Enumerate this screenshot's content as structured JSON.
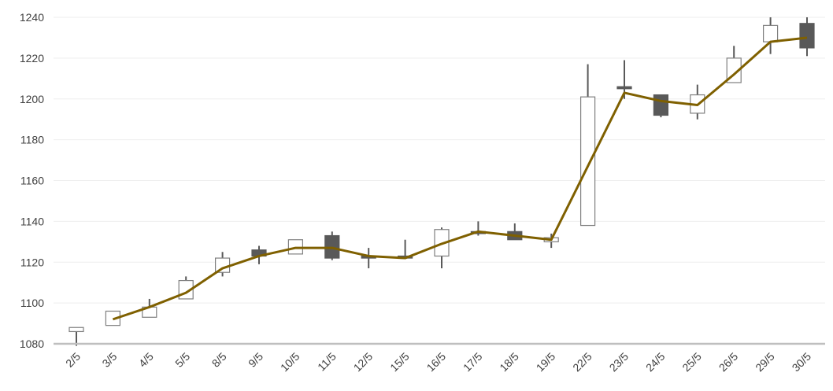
{
  "chart_data": {
    "type": "candlestick",
    "categories": [
      "2/5",
      "3/5",
      "4/5",
      "5/5",
      "8/5",
      "9/5",
      "10/5",
      "11/5",
      "12/5",
      "15/5",
      "16/5",
      "17/5",
      "18/5",
      "19/5",
      "22/5",
      "23/5",
      "24/5",
      "25/5",
      "26/5",
      "29/5",
      "30/5"
    ],
    "candles": [
      {
        "open": 1086,
        "close": 1088,
        "high": 1088,
        "low": 1079
      },
      {
        "open": 1089,
        "close": 1096,
        "high": 1096,
        "low": 1089
      },
      {
        "open": 1093,
        "close": 1098,
        "high": 1102,
        "low": 1093
      },
      {
        "open": 1102,
        "close": 1111,
        "high": 1113,
        "low": 1102
      },
      {
        "open": 1115,
        "close": 1122,
        "high": 1125,
        "low": 1113
      },
      {
        "open": 1126,
        "close": 1123,
        "high": 1128,
        "low": 1119
      },
      {
        "open": 1124,
        "close": 1131,
        "high": 1131,
        "low": 1124
      },
      {
        "open": 1133,
        "close": 1122,
        "high": 1135,
        "low": 1121
      },
      {
        "open": 1123,
        "close": 1122,
        "high": 1127,
        "low": 1117
      },
      {
        "open": 1123,
        "close": 1122,
        "high": 1131,
        "low": 1122
      },
      {
        "open": 1123,
        "close": 1136,
        "high": 1137,
        "low": 1117
      },
      {
        "open": 1135,
        "close": 1134,
        "high": 1140,
        "low": 1133
      },
      {
        "open": 1135,
        "close": 1131,
        "high": 1139,
        "low": 1131
      },
      {
        "open": 1130,
        "close": 1132,
        "high": 1134,
        "low": 1127
      },
      {
        "open": 1138,
        "close": 1201,
        "high": 1217,
        "low": 1138
      },
      {
        "open": 1206,
        "close": 1205,
        "high": 1219,
        "low": 1200
      },
      {
        "open": 1202,
        "close": 1192,
        "high": 1202,
        "low": 1191
      },
      {
        "open": 1193,
        "close": 1202,
        "high": 1207,
        "low": 1190
      },
      {
        "open": 1208,
        "close": 1220,
        "high": 1226,
        "low": 1208
      },
      {
        "open": 1228,
        "close": 1236,
        "high": 1240,
        "low": 1222
      },
      {
        "open": 1237,
        "close": 1225,
        "high": 1240,
        "low": 1221
      }
    ],
    "moving_average": [
      null,
      1092,
      1098,
      1105,
      1117,
      1123,
      1127,
      1127,
      1123,
      1122,
      1129,
      1135,
      1133,
      1131,
      1167,
      1203,
      1199,
      1197,
      1212,
      1228,
      1230
    ],
    "yticks": [
      1080,
      1100,
      1120,
      1140,
      1160,
      1180,
      1200,
      1220,
      1240
    ],
    "ylim": [
      1080,
      1240
    ],
    "grid": true,
    "colors": {
      "up_fill": "#ffffff",
      "up_stroke": "#7f7f7f",
      "down_fill": "#595959",
      "wick": "#595959",
      "ma_line": "#7f6000",
      "grid": "#eeeeee",
      "axis": "#bfbfbf"
    }
  }
}
